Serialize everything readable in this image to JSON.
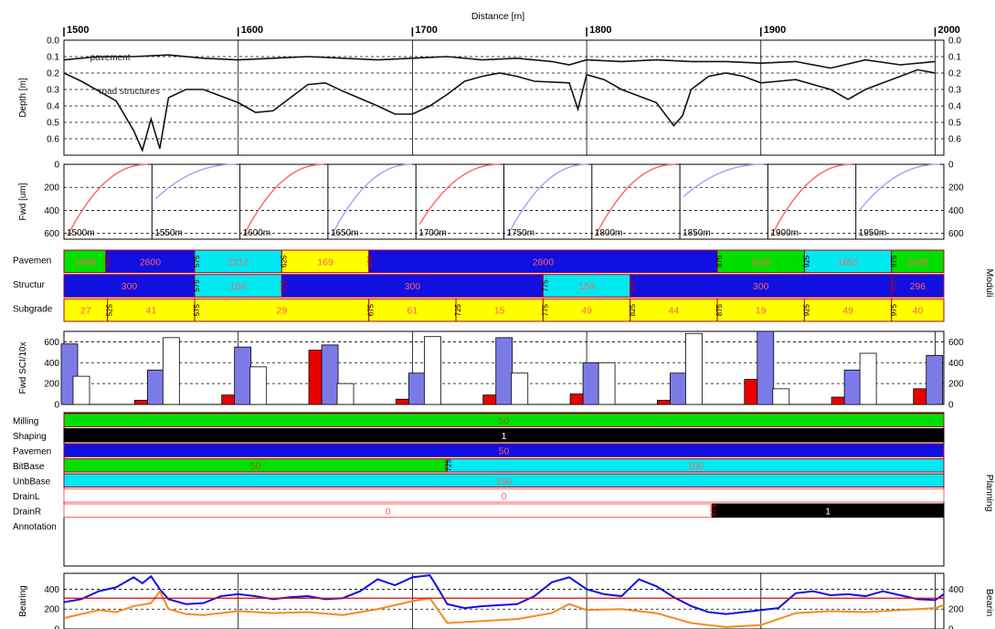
{
  "colors": {
    "green": "#00e000",
    "blue": "#1010e0",
    "cyan": "#00e8f0",
    "yellow": "#ffff00",
    "red": "#e80000",
    "lightblue": "#7b7be8",
    "black": "#000000",
    "orange": "#f58a1e",
    "darkred": "#b00020",
    "pink": "#ff6060",
    "lavender": "#a0a0f8"
  },
  "x_axis": {
    "title": "Distance [m]",
    "ticks": [
      "1500",
      "1600",
      "1700",
      "1800",
      "1900",
      "2000"
    ]
  },
  "side_labels": {
    "moduli": "Moduli",
    "planning": "Planning",
    "bearing_right": "Bearin"
  },
  "chart_data": [
    {
      "id": "depth",
      "type": "line",
      "ylabel": "Depth [m]",
      "yticks": [
        "0.0",
        "0.1",
        "0.2",
        "0.3",
        "0.4",
        "0.5",
        "0.6"
      ],
      "ylim": [
        0.7,
        0.0
      ],
      "annotations": [
        "pavement",
        "road structures"
      ],
      "series": [
        {
          "name": "pavement",
          "x": [
            1500,
            1520,
            1540,
            1560,
            1580,
            1600,
            1620,
            1640,
            1660,
            1680,
            1700,
            1720,
            1740,
            1760,
            1780,
            1790,
            1800,
            1820,
            1840,
            1860,
            1880,
            1900,
            1920,
            1940,
            1960,
            1980,
            2000
          ],
          "y": [
            0.12,
            0.1,
            0.1,
            0.09,
            0.11,
            0.12,
            0.11,
            0.1,
            0.11,
            0.12,
            0.11,
            0.1,
            0.12,
            0.11,
            0.13,
            0.15,
            0.12,
            0.13,
            0.12,
            0.13,
            0.13,
            0.14,
            0.13,
            0.17,
            0.12,
            0.15,
            0.13
          ]
        },
        {
          "name": "road structures",
          "x": [
            1500,
            1510,
            1530,
            1540,
            1545,
            1550,
            1555,
            1560,
            1570,
            1580,
            1600,
            1610,
            1620,
            1640,
            1650,
            1660,
            1680,
            1690,
            1700,
            1710,
            1720,
            1730,
            1740,
            1750,
            1760,
            1770,
            1790,
            1795,
            1800,
            1810,
            1820,
            1840,
            1850,
            1855,
            1860,
            1870,
            1880,
            1890,
            1900,
            1910,
            1920,
            1940,
            1950,
            1960,
            1970,
            1980,
            1990,
            2000
          ],
          "y": [
            0.2,
            0.25,
            0.37,
            0.55,
            0.67,
            0.48,
            0.66,
            0.35,
            0.3,
            0.3,
            0.38,
            0.44,
            0.43,
            0.27,
            0.26,
            0.31,
            0.4,
            0.45,
            0.45,
            0.4,
            0.33,
            0.25,
            0.22,
            0.2,
            0.22,
            0.25,
            0.26,
            0.42,
            0.21,
            0.24,
            0.3,
            0.38,
            0.52,
            0.46,
            0.3,
            0.22,
            0.2,
            0.22,
            0.26,
            0.25,
            0.24,
            0.3,
            0.36,
            0.3,
            0.26,
            0.22,
            0.18,
            0.2
          ]
        }
      ]
    },
    {
      "id": "fwd_curves",
      "type": "line",
      "ylabel": "Fwd [um]",
      "yticks": [
        "0",
        "200",
        "400",
        "600"
      ],
      "ylim": [
        650,
        0
      ],
      "panel_labels": [
        "1500m",
        "1550m",
        "1600m",
        "1650m",
        "1700m",
        "1750m",
        "1800m",
        "1850m",
        "1900m",
        "1950m"
      ],
      "curves": [
        {
          "color": "red",
          "start": 620
        },
        {
          "color": "lavender",
          "start": 300
        },
        {
          "color": "red",
          "start": 620
        },
        {
          "color": "lavender",
          "start": 620
        },
        {
          "color": "red",
          "start": 520
        },
        {
          "color": "lavender",
          "start": 620
        },
        {
          "color": "red",
          "start": 620
        },
        {
          "color": "lavender",
          "start": 280
        },
        {
          "color": "red",
          "start": 620
        },
        {
          "color": "lavender",
          "start": 400
        }
      ]
    },
    {
      "id": "moduli",
      "type": "table",
      "rows": [
        {
          "label": "Pavemen",
          "segments": [
            {
              "from": 1500,
              "to": 1524,
              "value": "1588",
              "color": "green",
              "tag": ""
            },
            {
              "from": 1524,
              "to": 1575,
              "value": "2800",
              "color": "blue",
              "tag": "525"
            },
            {
              "from": 1575,
              "to": 1625,
              "value": "2217",
              "color": "cyan",
              "tag": "575"
            },
            {
              "from": 1625,
              "to": 1675,
              "value": "169",
              "color": "yellow",
              "tag": "625"
            },
            {
              "from": 1675,
              "to": 1875,
              "value": "2800",
              "color": "blue",
              "tag": "675"
            },
            {
              "from": 1875,
              "to": 1925,
              "value": "1106",
              "color": "green",
              "tag": "875"
            },
            {
              "from": 1925,
              "to": 1975,
              "value": "1851",
              "color": "cyan",
              "tag": "925"
            },
            {
              "from": 1975,
              "to": 2005,
              "value": "1240",
              "color": "green",
              "tag": "975"
            }
          ]
        },
        {
          "label": "Structur",
          "segments": [
            {
              "from": 1500,
              "to": 1575,
              "value": "300",
              "color": "blue",
              "tag": ""
            },
            {
              "from": 1575,
              "to": 1625,
              "value": "104",
              "color": "cyan",
              "tag": "575"
            },
            {
              "from": 1625,
              "to": 1775,
              "value": "300",
              "color": "blue",
              "tag": "625"
            },
            {
              "from": 1775,
              "to": 1825,
              "value": "154",
              "color": "cyan",
              "tag": "775"
            },
            {
              "from": 1825,
              "to": 1975,
              "value": "300",
              "color": "blue",
              "tag": "825"
            },
            {
              "from": 1975,
              "to": 2005,
              "value": "296",
              "color": "blue",
              "tag": "975"
            }
          ]
        },
        {
          "label": "Subgrade",
          "segments": [
            {
              "from": 1500,
              "to": 1525,
              "value": "27",
              "color": "yellow",
              "tag": ""
            },
            {
              "from": 1525,
              "to": 1575,
              "value": "41",
              "color": "yellow",
              "tag": "525"
            },
            {
              "from": 1575,
              "to": 1675,
              "value": "29",
              "color": "yellow",
              "tag": "575"
            },
            {
              "from": 1675,
              "to": 1725,
              "value": "61",
              "color": "yellow",
              "tag": "675"
            },
            {
              "from": 1725,
              "to": 1775,
              "value": "15",
              "color": "yellow",
              "tag": "725"
            },
            {
              "from": 1775,
              "to": 1825,
              "value": "49",
              "color": "yellow",
              "tag": "775"
            },
            {
              "from": 1825,
              "to": 1875,
              "value": "44",
              "color": "yellow",
              "tag": "825"
            },
            {
              "from": 1875,
              "to": 1925,
              "value": "19",
              "color": "yellow",
              "tag": "875"
            },
            {
              "from": 1925,
              "to": 1975,
              "value": "49",
              "color": "yellow",
              "tag": "925"
            },
            {
              "from": 1975,
              "to": 2005,
              "value": "40",
              "color": "yellow",
              "tag": "975"
            }
          ]
        }
      ]
    },
    {
      "id": "fwd_sci",
      "type": "bar",
      "ylabel": "Fwd SCI/10x",
      "yticks": [
        "0",
        "200",
        "400",
        "600"
      ],
      "ylim": [
        0,
        700
      ],
      "groups": [
        {
          "x": 1500,
          "red": 0,
          "blue": 580,
          "white": 270
        },
        {
          "x": 1550,
          "red": 40,
          "blue": 330,
          "white": 640
        },
        {
          "x": 1600,
          "red": 90,
          "blue": 550,
          "white": 360
        },
        {
          "x": 1650,
          "red": 520,
          "blue": 570,
          "white": 200
        },
        {
          "x": 1700,
          "red": 50,
          "blue": 300,
          "white": 650
        },
        {
          "x": 1750,
          "red": 90,
          "blue": 640,
          "white": 300
        },
        {
          "x": 1800,
          "red": 100,
          "blue": 400,
          "white": 400
        },
        {
          "x": 1850,
          "red": 40,
          "blue": 300,
          "white": 680
        },
        {
          "x": 1900,
          "red": 240,
          "blue": 700,
          "white": 150
        },
        {
          "x": 1950,
          "red": 70,
          "blue": 330,
          "white": 490
        },
        {
          "x": 2000,
          "red": 150,
          "blue": 470,
          "white": 0
        }
      ]
    },
    {
      "id": "planning",
      "type": "table",
      "rows": [
        {
          "label": "Milling",
          "segments": [
            {
              "from": 1500,
              "to": 2005,
              "value": "50",
              "color": "green",
              "tag": ""
            }
          ]
        },
        {
          "label": "Shaping",
          "segments": [
            {
              "from": 1500,
              "to": 2005,
              "value": "1",
              "color": "black",
              "tag": ""
            }
          ]
        },
        {
          "label": "Pavemen",
          "segments": [
            {
              "from": 1500,
              "to": 2005,
              "value": "50",
              "color": "blue",
              "tag": ""
            }
          ]
        },
        {
          "label": "BitBase",
          "segments": [
            {
              "from": 1500,
              "to": 1720,
              "value": "50",
              "color": "green",
              "tag": ""
            },
            {
              "from": 1720,
              "to": 2005,
              "value": "100",
              "color": "cyan",
              "tag": "725"
            }
          ]
        },
        {
          "label": "UnbBase",
          "segments": [
            {
              "from": 1500,
              "to": 2005,
              "value": "150",
              "color": "cyan",
              "tag": ""
            }
          ]
        },
        {
          "label": "DrainL",
          "segments": [
            {
              "from": 1500,
              "to": 2005,
              "value": "0",
              "color": "white",
              "tag": ""
            }
          ]
        },
        {
          "label": "DrainR",
          "segments": [
            {
              "from": 1500,
              "to": 1872,
              "value": "0",
              "color": "white",
              "tag": ""
            },
            {
              "from": 1872,
              "to": 2005,
              "value": "1",
              "color": "black",
              "tag": "875"
            }
          ]
        },
        {
          "label": "Annotation",
          "segments": []
        }
      ]
    },
    {
      "id": "bearing",
      "type": "line",
      "ylabel": "Bearing",
      "yticks": [
        "0",
        "200",
        "400"
      ],
      "ylim": [
        0,
        560
      ],
      "series": [
        {
          "color": "blue",
          "x": [
            1500,
            1510,
            1520,
            1530,
            1540,
            1545,
            1550,
            1555,
            1560,
            1570,
            1580,
            1590,
            1600,
            1610,
            1620,
            1630,
            1640,
            1650,
            1660,
            1670,
            1680,
            1690,
            1700,
            1710,
            1715,
            1720,
            1730,
            1740,
            1750,
            1760,
            1770,
            1780,
            1790,
            1800,
            1810,
            1820,
            1830,
            1840,
            1850,
            1860,
            1870,
            1880,
            1890,
            1900,
            1910,
            1920,
            1930,
            1940,
            1950,
            1960,
            1970,
            1980,
            1990,
            2000,
            2005
          ],
          "y": [
            270,
            300,
            380,
            420,
            520,
            460,
            530,
            400,
            300,
            250,
            260,
            330,
            350,
            330,
            300,
            320,
            330,
            300,
            310,
            380,
            500,
            440,
            520,
            540,
            400,
            250,
            210,
            230,
            240,
            250,
            330,
            470,
            520,
            400,
            350,
            330,
            500,
            430,
            320,
            230,
            170,
            150,
            170,
            190,
            210,
            360,
            380,
            340,
            350,
            330,
            380,
            340,
            300,
            290,
            350
          ]
        },
        {
          "color": "orange",
          "x": [
            1500,
            1510,
            1520,
            1530,
            1540,
            1550,
            1555,
            1560,
            1570,
            1580,
            1600,
            1620,
            1640,
            1660,
            1680,
            1700,
            1710,
            1720,
            1740,
            1760,
            1780,
            1790,
            1800,
            1820,
            1840,
            1860,
            1880,
            1900,
            1920,
            1940,
            1960,
            1980,
            2000,
            2005
          ],
          "y": [
            110,
            150,
            190,
            170,
            230,
            260,
            380,
            200,
            150,
            140,
            180,
            160,
            170,
            140,
            200,
            280,
            310,
            60,
            80,
            100,
            160,
            250,
            190,
            200,
            160,
            60,
            20,
            40,
            160,
            180,
            170,
            190,
            210,
            240
          ]
        },
        {
          "color": "red",
          "x": [
            1500,
            2005
          ],
          "y": [
            310,
            310
          ]
        }
      ]
    }
  ]
}
